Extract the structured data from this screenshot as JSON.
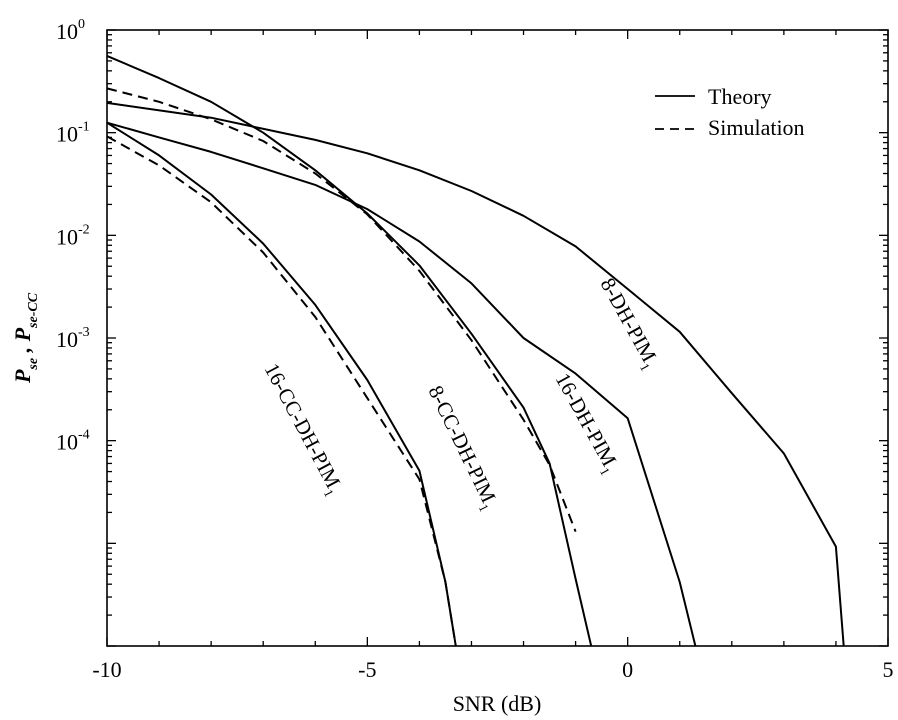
{
  "chart_data": {
    "type": "line",
    "title": "",
    "xlabel": "SNR (dB)",
    "ylabel": {
      "base1": "P",
      "sub1": "se",
      "sep": " , ",
      "base2": "P",
      "sub2": "se-CC"
    },
    "xlim": [
      -10,
      5
    ],
    "ylim": [
      1e-06,
      1
    ],
    "yscale": "log",
    "grid": false,
    "x_ticks": [
      {
        "value": -10,
        "label": "-10"
      },
      {
        "value": -5,
        "label": "-5"
      },
      {
        "value": 0,
        "label": "0"
      },
      {
        "value": 5,
        "label": "5"
      }
    ],
    "y_ticks": [
      {
        "value": 1,
        "base": "10",
        "exp": "0"
      },
      {
        "value": 0.1,
        "base": "10",
        "exp": "-1"
      },
      {
        "value": 0.01,
        "base": "10",
        "exp": "-2"
      },
      {
        "value": 0.001,
        "base": "10",
        "exp": "-3"
      },
      {
        "value": 0.0001,
        "base": "10",
        "exp": "-4"
      }
    ],
    "legend": {
      "position": "top-right",
      "entries": [
        {
          "label": "Theory",
          "style": "solid"
        },
        {
          "label": "Simulation",
          "style": "dashed"
        }
      ]
    },
    "series": [
      {
        "label": "8-DH-PIM",
        "label_sub": "1",
        "style": "solid",
        "x": [
          -10,
          -8,
          -6,
          -5,
          -4,
          -3,
          -2,
          -1,
          0,
          1,
          2,
          3,
          4,
          4.15
        ],
        "y": [
          0.195,
          0.14,
          0.085,
          0.063,
          0.043,
          0.027,
          0.0155,
          0.0078,
          0.003,
          0.00115,
          0.00029,
          7.5e-05,
          9.3e-06,
          1e-06
        ]
      },
      {
        "label": "16-DH-PIM",
        "label_sub": "1",
        "style": "solid",
        "x": [
          -10,
          -9,
          -8,
          -7,
          -6,
          -5,
          -4,
          -3,
          -2,
          -1,
          0,
          1,
          1.3
        ],
        "y": [
          0.125,
          0.09,
          0.065,
          0.045,
          0.031,
          0.018,
          0.0087,
          0.0034,
          0.001,
          0.00045,
          0.000165,
          4.2e-06,
          1e-06
        ]
      },
      {
        "label": "8-CC-DH-PIM",
        "label_sub": "1",
        "style": "solid",
        "x": [
          -10,
          -9,
          -8,
          -7,
          -6,
          -5,
          -4,
          -3,
          -2,
          -1.5,
          -1,
          -0.7
        ],
        "y": [
          0.56,
          0.34,
          0.2,
          0.1,
          0.043,
          0.0163,
          0.0051,
          0.0011,
          0.00021,
          6e-05,
          4.5e-06,
          1e-06
        ]
      },
      {
        "label": "8-CC-DH-PIM",
        "label_sub": "1",
        "style": "dashed",
        "x": [
          -10,
          -9,
          -8,
          -7,
          -6,
          -5,
          -4,
          -3,
          -2,
          -1.5,
          -1
        ],
        "y": [
          0.27,
          0.2,
          0.135,
          0.083,
          0.04,
          0.016,
          0.0045,
          0.00095,
          0.00016,
          5.8e-05,
          1.3e-05
        ]
      },
      {
        "label": "16-CC-DH-PIM",
        "label_sub": "1",
        "style": "solid",
        "x": [
          -10,
          -9,
          -8,
          -7,
          -6,
          -5,
          -4,
          -3.5,
          -3.3
        ],
        "y": [
          0.125,
          0.06,
          0.025,
          0.0083,
          0.0021,
          0.00039,
          5.1e-05,
          4.2e-06,
          1e-06
        ]
      },
      {
        "label": "16-CC-DH-PIM",
        "label_sub": "1",
        "style": "dashed",
        "x": [
          -10,
          -9,
          -8,
          -7,
          -6,
          -5,
          -4,
          -3.5,
          -3.3
        ],
        "y": [
          0.092,
          0.048,
          0.021,
          0.0068,
          0.0016,
          0.00026,
          4.2e-05,
          4.2e-06,
          1e-06
        ]
      }
    ],
    "annotations": [
      {
        "text": "8-DH-PIM",
        "sub": "1",
        "series": 0
      },
      {
        "text": "16-DH-PIM",
        "sub": "1",
        "series": 1
      },
      {
        "text": "8-CC-DH-PIM",
        "sub": "1",
        "series": 2
      },
      {
        "text": "16-CC-DH-PIM",
        "sub": "1",
        "series": 4
      }
    ]
  }
}
